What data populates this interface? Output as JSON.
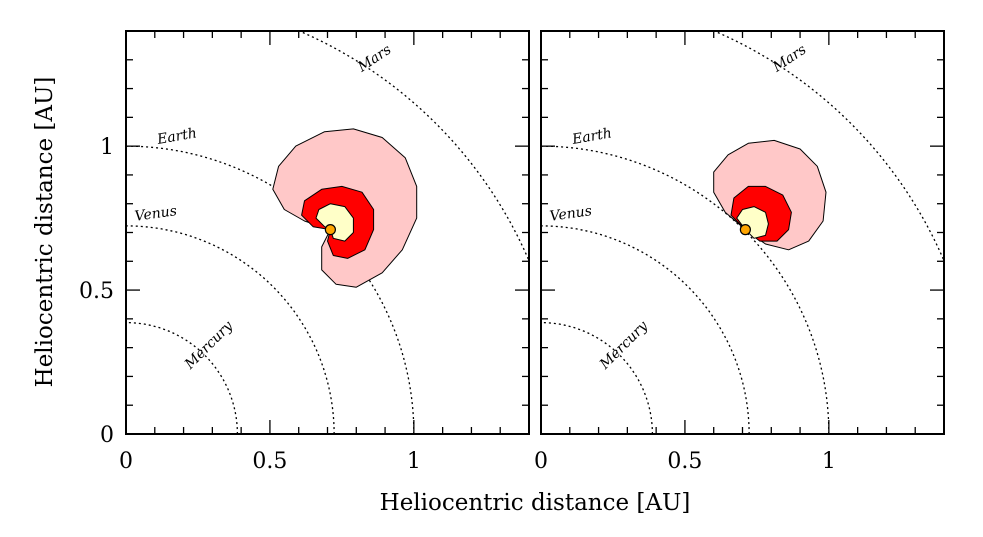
{
  "chart_data": {
    "type": "line",
    "xlabel": "Heliocentric distance [AU]",
    "ylabel": "Heliocentric distance [AU]",
    "xlim": [
      0,
      1.4
    ],
    "ylim": [
      0,
      1.4
    ],
    "x_ticks": [
      {
        "value": 0,
        "label": "0"
      },
      {
        "value": 0.5,
        "label": "0.5"
      },
      {
        "value": 1,
        "label": "1"
      }
    ],
    "y_ticks": [
      {
        "value": 0,
        "label": "0"
      },
      {
        "value": 0.5,
        "label": "0.5"
      },
      {
        "value": 1,
        "label": "1"
      }
    ],
    "orbits": [
      {
        "name": "Mercury",
        "radius_au": 0.387
      },
      {
        "name": "Venus",
        "radius_au": 0.723
      },
      {
        "name": "Earth",
        "radius_au": 1.0
      },
      {
        "name": "Mars",
        "radius_au": 1.524
      }
    ],
    "zone_colors": {
      "outer": "#ffc8c8",
      "middle": "#ff0000",
      "inner": "#ffffc8",
      "body": "#ffa500"
    },
    "panels": [
      {
        "body": {
          "x": 0.71,
          "y": 0.71
        },
        "zones": [
          {
            "level": "outer",
            "points": [
              [
                0.71,
                0.71
              ],
              [
                0.68,
                0.65
              ],
              [
                0.68,
                0.57
              ],
              [
                0.73,
                0.52
              ],
              [
                0.8,
                0.51
              ],
              [
                0.89,
                0.56
              ],
              [
                0.96,
                0.64
              ],
              [
                1.01,
                0.75
              ],
              [
                1.01,
                0.86
              ],
              [
                0.97,
                0.96
              ],
              [
                0.89,
                1.03
              ],
              [
                0.79,
                1.06
              ],
              [
                0.69,
                1.05
              ],
              [
                0.59,
                1.0
              ],
              [
                0.53,
                0.93
              ],
              [
                0.51,
                0.85
              ],
              [
                0.55,
                0.78
              ],
              [
                0.62,
                0.74
              ],
              [
                0.71,
                0.71
              ]
            ]
          },
          {
            "level": "middle",
            "points": [
              [
                0.71,
                0.71
              ],
              [
                0.7,
                0.67
              ],
              [
                0.72,
                0.62
              ],
              [
                0.77,
                0.61
              ],
              [
                0.83,
                0.64
              ],
              [
                0.86,
                0.71
              ],
              [
                0.86,
                0.78
              ],
              [
                0.82,
                0.84
              ],
              [
                0.75,
                0.86
              ],
              [
                0.68,
                0.85
              ],
              [
                0.62,
                0.81
              ],
              [
                0.61,
                0.76
              ],
              [
                0.65,
                0.72
              ],
              [
                0.71,
                0.71
              ]
            ]
          },
          {
            "level": "inner",
            "points": [
              [
                0.71,
                0.71
              ],
              [
                0.72,
                0.68
              ],
              [
                0.76,
                0.67
              ],
              [
                0.79,
                0.7
              ],
              [
                0.79,
                0.75
              ],
              [
                0.76,
                0.79
              ],
              [
                0.71,
                0.8
              ],
              [
                0.67,
                0.78
              ],
              [
                0.66,
                0.75
              ],
              [
                0.69,
                0.72
              ],
              [
                0.71,
                0.71
              ]
            ]
          }
        ]
      },
      {
        "body": {
          "x": 0.71,
          "y": 0.71
        },
        "zones": [
          {
            "level": "outer",
            "points": [
              [
                0.71,
                0.71
              ],
              [
                0.78,
                0.66
              ],
              [
                0.86,
                0.64
              ],
              [
                0.93,
                0.67
              ],
              [
                0.98,
                0.74
              ],
              [
                0.99,
                0.84
              ],
              [
                0.96,
                0.93
              ],
              [
                0.9,
                0.99
              ],
              [
                0.81,
                1.02
              ],
              [
                0.72,
                1.01
              ],
              [
                0.65,
                0.97
              ],
              [
                0.6,
                0.91
              ],
              [
                0.6,
                0.84
              ],
              [
                0.64,
                0.77
              ],
              [
                0.71,
                0.71
              ]
            ]
          },
          {
            "level": "middle",
            "points": [
              [
                0.71,
                0.71
              ],
              [
                0.76,
                0.67
              ],
              [
                0.82,
                0.67
              ],
              [
                0.86,
                0.71
              ],
              [
                0.87,
                0.77
              ],
              [
                0.84,
                0.83
              ],
              [
                0.78,
                0.86
              ],
              [
                0.72,
                0.86
              ],
              [
                0.67,
                0.82
              ],
              [
                0.66,
                0.76
              ],
              [
                0.71,
                0.71
              ]
            ]
          },
          {
            "level": "inner",
            "points": [
              [
                0.71,
                0.71
              ],
              [
                0.74,
                0.68
              ],
              [
                0.78,
                0.69
              ],
              [
                0.79,
                0.73
              ],
              [
                0.78,
                0.77
              ],
              [
                0.74,
                0.79
              ],
              [
                0.7,
                0.78
              ],
              [
                0.68,
                0.75
              ],
              [
                0.71,
                0.71
              ]
            ]
          }
        ]
      }
    ]
  }
}
